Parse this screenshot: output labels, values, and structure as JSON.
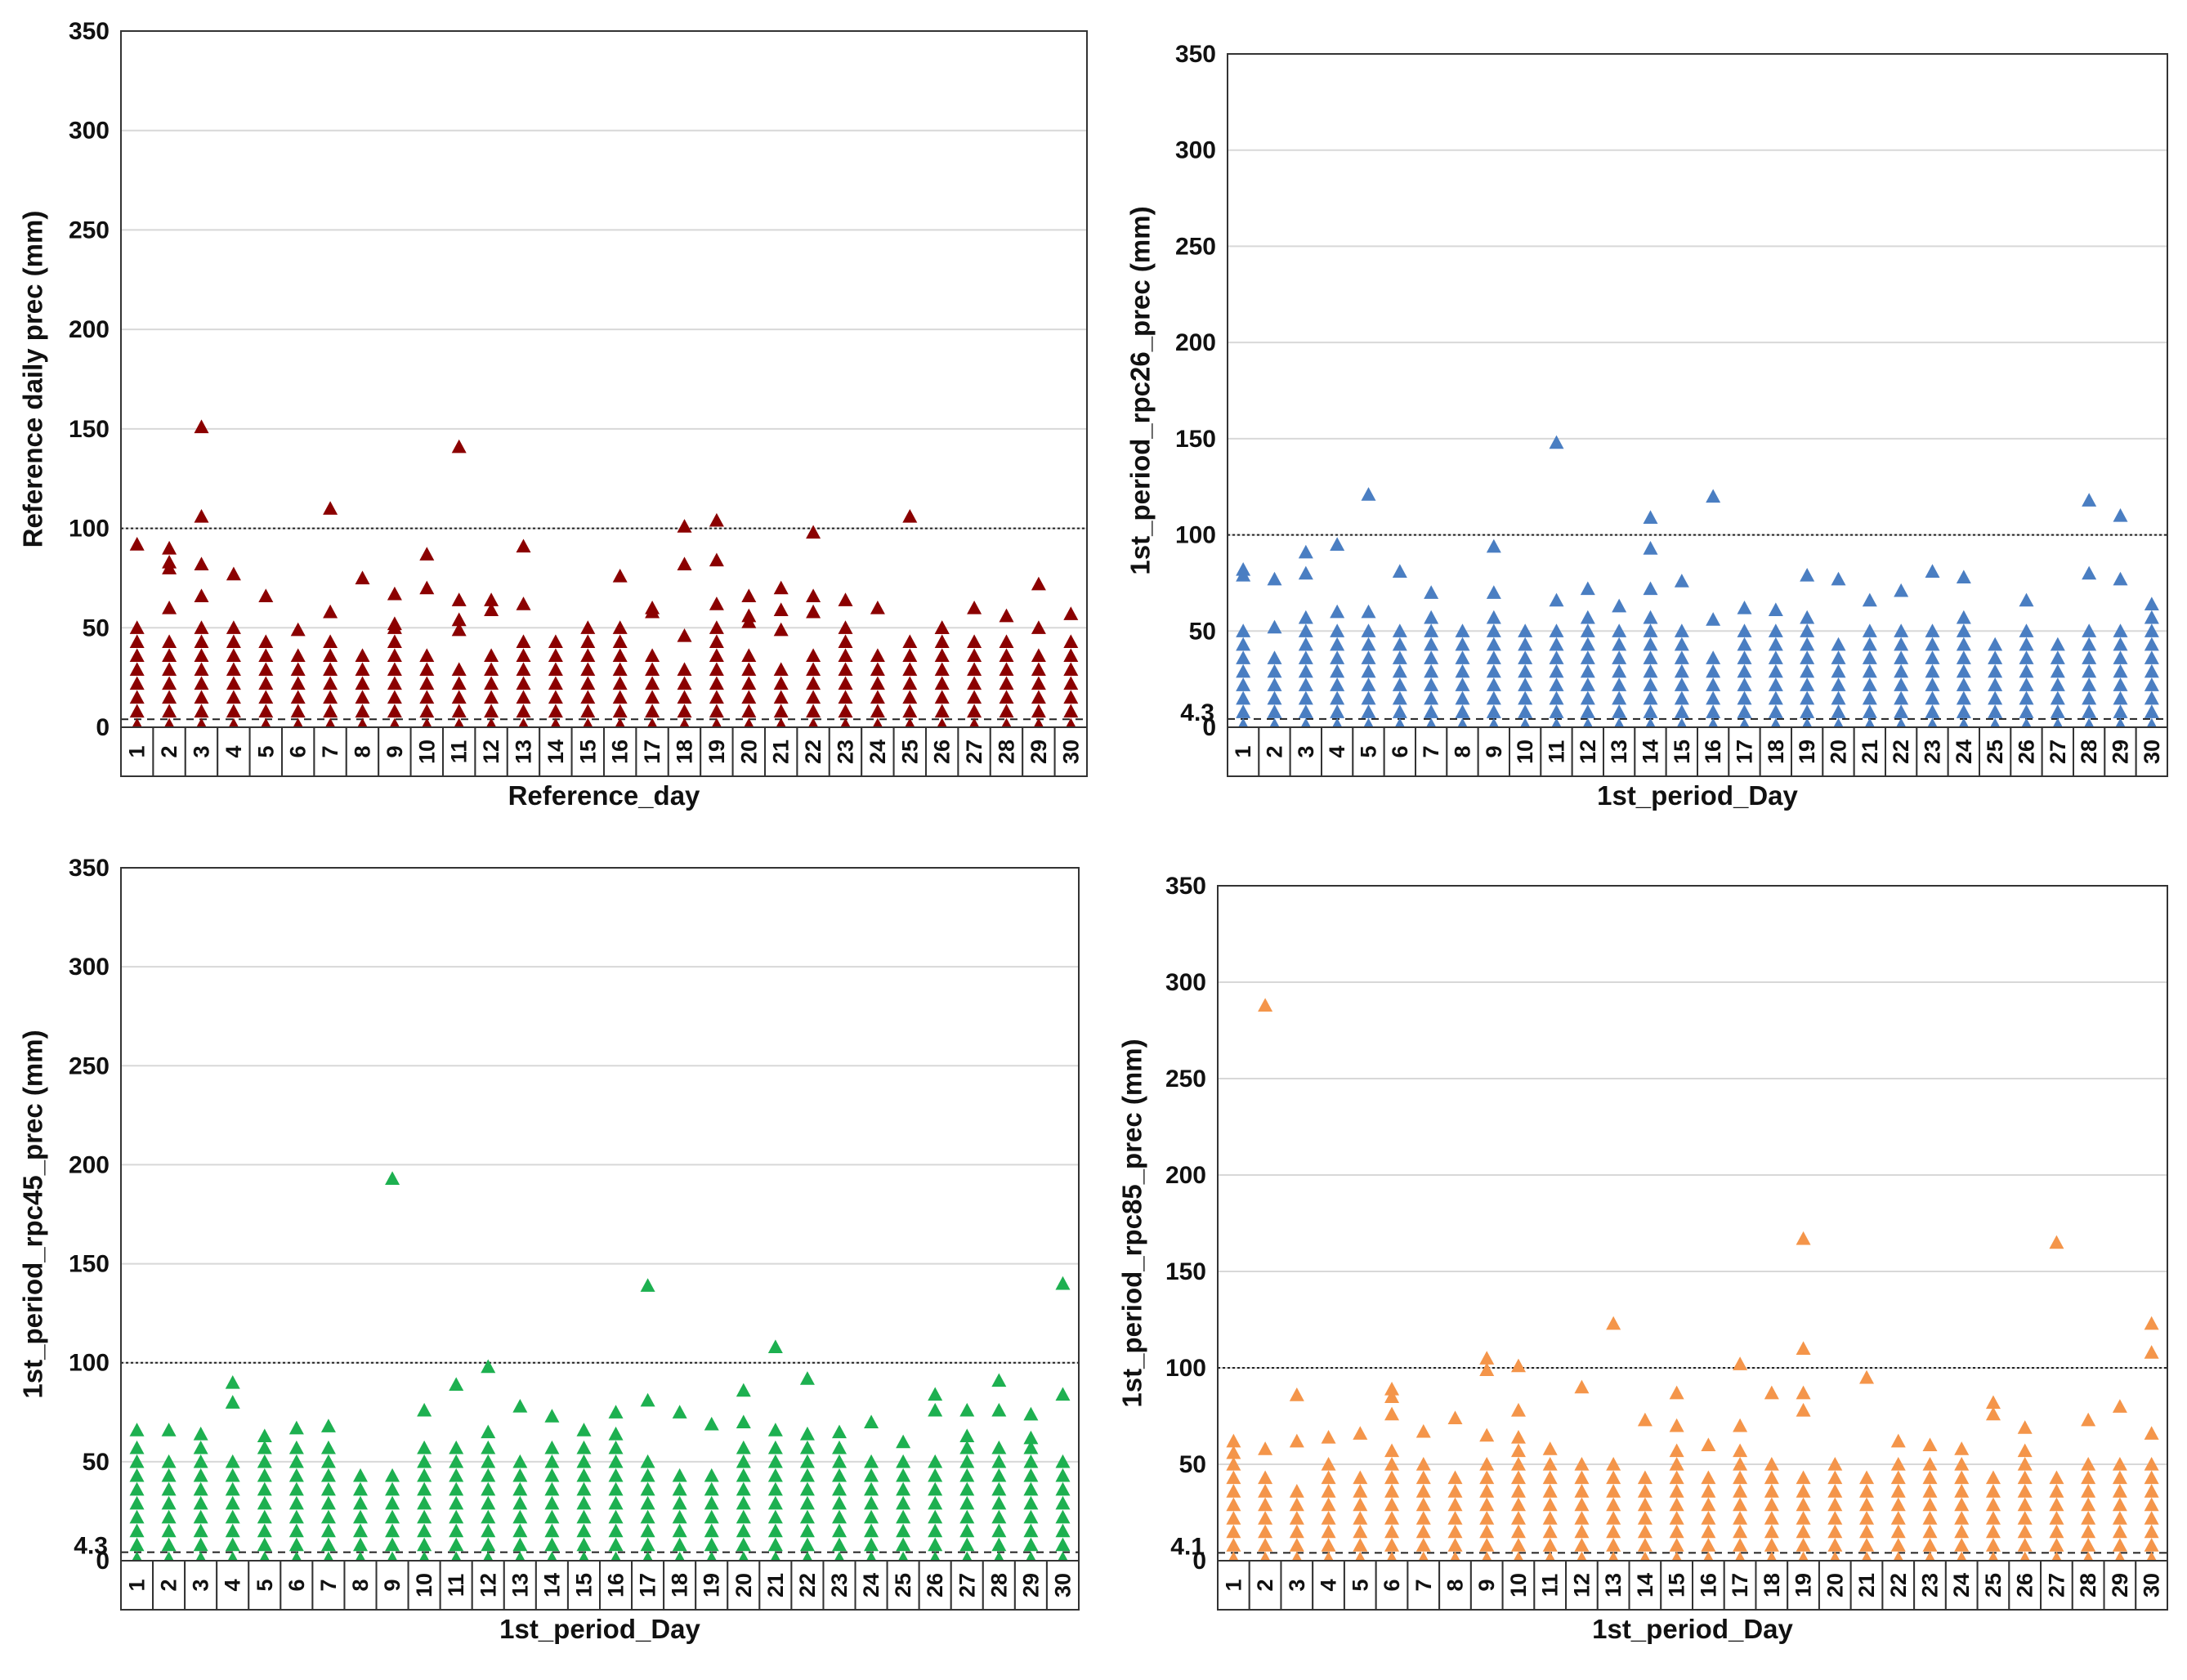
{
  "chart_data": [
    {
      "type": "scatter",
      "title": "",
      "xlabel": "Reference_day",
      "ylabel": "Reference daily prec (mm)",
      "categories": [
        "1",
        "2",
        "3",
        "4",
        "5",
        "6",
        "7",
        "8",
        "9",
        "10",
        "11",
        "12",
        "13",
        "14",
        "15",
        "16",
        "17",
        "18",
        "19",
        "20",
        "21",
        "22",
        "23",
        "24",
        "25",
        "26",
        "27",
        "28",
        "29",
        "30"
      ],
      "ylim": [
        0,
        350
      ],
      "yticks": [
        "0",
        "50",
        "100",
        "150",
        "200",
        "250",
        "300",
        "350"
      ],
      "ref_lines": [
        {
          "y": 100,
          "style": "dotted"
        },
        {
          "y": 4,
          "style": "dashed"
        }
      ],
      "marker_color": "#8B0000",
      "dense_top": [
        52,
        46,
        55,
        54,
        47,
        40,
        47,
        42,
        53,
        40,
        33,
        42,
        43,
        48,
        52,
        56,
        42,
        34,
        50,
        41,
        34,
        38,
        55,
        41,
        49,
        52,
        48,
        45,
        41,
        44
      ],
      "outliers": [
        [
          92
        ],
        [
          90,
          83,
          80,
          60
        ],
        [
          151,
          106,
          82,
          66
        ],
        [
          77
        ],
        [
          66
        ],
        [
          49
        ],
        [
          110,
          58
        ],
        [
          75
        ],
        [
          67,
          52
        ],
        [
          87,
          70
        ],
        [
          141,
          64,
          54,
          49
        ],
        [
          64,
          59
        ],
        [
          91,
          62
        ],
        [],
        [],
        [
          76
        ],
        [
          60,
          58
        ],
        [
          101,
          82,
          46
        ],
        [
          104,
          84,
          62
        ],
        [
          66,
          56,
          53
        ],
        [
          70,
          59,
          49
        ],
        [
          98,
          66,
          58
        ],
        [
          64
        ],
        [
          60
        ],
        [
          106
        ],
        [
          50
        ],
        [
          60
        ],
        [
          56
        ],
        [
          72,
          50
        ],
        [
          57
        ]
      ]
    },
    {
      "type": "scatter",
      "title": "",
      "xlabel": "1st_period_Day",
      "ylabel": "1st_period_rpc26_prec (mm)",
      "categories": [
        "1",
        "2",
        "3",
        "4",
        "5",
        "6",
        "7",
        "8",
        "9",
        "10",
        "11",
        "12",
        "13",
        "14",
        "15",
        "16",
        "17",
        "18",
        "19",
        "20",
        "21",
        "22",
        "23",
        "24",
        "25",
        "26",
        "27",
        "28",
        "29",
        "30"
      ],
      "ylim": [
        0,
        350
      ],
      "yticks": [
        "0",
        "50",
        "100",
        "150",
        "200",
        "250",
        "300",
        "350"
      ],
      "extra_ytick": "4.3",
      "ref_lines": [
        {
          "y": 100,
          "style": "dotted"
        },
        {
          "y": 4.3,
          "style": "dashed"
        }
      ],
      "marker_color": "#4A7EC2",
      "dense_top": [
        55,
        42,
        58,
        55,
        50,
        52,
        60,
        50,
        60,
        55,
        52,
        58,
        52,
        58,
        55,
        42,
        56,
        52,
        52,
        48,
        55,
        55,
        55,
        58,
        45,
        52,
        48,
        52,
        50,
        58
      ],
      "outliers": [
        [
          82,
          79
        ],
        [
          77,
          52
        ],
        [
          91,
          80
        ],
        [
          95,
          60
        ],
        [
          121,
          60
        ],
        [
          81
        ],
        [
          70
        ],
        [],
        [
          94,
          70
        ],
        [],
        [
          148,
          66
        ],
        [
          72
        ],
        [
          63
        ],
        [
          109,
          93,
          72
        ],
        [
          76
        ],
        [
          120,
          56
        ],
        [
          62
        ],
        [
          61
        ],
        [
          79,
          57
        ],
        [
          77
        ],
        [
          66
        ],
        [
          71
        ],
        [
          81
        ],
        [
          78
        ],
        [],
        [
          66
        ],
        [],
        [
          118,
          80
        ],
        [
          110,
          77
        ],
        [
          64
        ]
      ]
    },
    {
      "type": "scatter",
      "title": "",
      "xlabel": "1st_period_Day",
      "ylabel": "1st_period_rpc45_prec (mm)",
      "categories": [
        "1",
        "2",
        "3",
        "4",
        "5",
        "6",
        "7",
        "8",
        "9",
        "10",
        "11",
        "12",
        "13",
        "14",
        "15",
        "16",
        "17",
        "18",
        "19",
        "20",
        "21",
        "22",
        "23",
        "24",
        "25",
        "26",
        "27",
        "28",
        "29",
        "30"
      ],
      "ylim": [
        0,
        350
      ],
      "yticks": [
        "0",
        "50",
        "100",
        "150",
        "200",
        "250",
        "300",
        "350"
      ],
      "extra_ytick": "4.3",
      "ref_lines": [
        {
          "y": 100,
          "style": "dotted"
        },
        {
          "y": 4.3,
          "style": "dashed"
        }
      ],
      "marker_color": "#1DB050",
      "dense_top": [
        62,
        50,
        60,
        55,
        60,
        60,
        60,
        48,
        48,
        58,
        58,
        58,
        55,
        58,
        62,
        70,
        55,
        48,
        48,
        60,
        58,
        58,
        58,
        55,
        50,
        52,
        58,
        58,
        58,
        55
      ],
      "outliers": [
        [
          66
        ],
        [
          66
        ],
        [
          64
        ],
        [
          90,
          80
        ],
        [
          63
        ],
        [
          67
        ],
        [
          68
        ],
        [],
        [
          193
        ],
        [
          76
        ],
        [
          89
        ],
        [
          98,
          65
        ],
        [
          78
        ],
        [
          73
        ],
        [
          66
        ],
        [
          75
        ],
        [
          139,
          81
        ],
        [
          75
        ],
        [
          69
        ],
        [
          86,
          70
        ],
        [
          108,
          66
        ],
        [
          92,
          64
        ],
        [
          65
        ],
        [
          70
        ],
        [
          60
        ],
        [
          84,
          76
        ],
        [
          76,
          63
        ],
        [
          91,
          76
        ],
        [
          74,
          62
        ],
        [
          140,
          84
        ]
      ]
    },
    {
      "type": "scatter",
      "title": "",
      "xlabel": "1st_period_Day",
      "ylabel": "1st_period_rpc85_prec (mm)",
      "categories": [
        "1",
        "2",
        "3",
        "4",
        "5",
        "6",
        "7",
        "8",
        "9",
        "10",
        "11",
        "12",
        "13",
        "14",
        "15",
        "16",
        "17",
        "18",
        "19",
        "20",
        "21",
        "22",
        "23",
        "24",
        "25",
        "26",
        "27",
        "28",
        "29",
        "30"
      ],
      "ylim": [
        0,
        350
      ],
      "yticks": [
        "0",
        "50",
        "100",
        "150",
        "200",
        "250",
        "300",
        "350"
      ],
      "extra_ytick": "4.1",
      "ref_lines": [
        {
          "y": 100,
          "style": "dotted"
        },
        {
          "y": 4.1,
          "style": "dashed"
        }
      ],
      "marker_color": "#F4954A",
      "dense_top": [
        50,
        48,
        40,
        55,
        45,
        60,
        50,
        45,
        55,
        70,
        55,
        50,
        52,
        45,
        58,
        45,
        58,
        55,
        45,
        48,
        45,
        52,
        52,
        55,
        45,
        60,
        48,
        50,
        50,
        55
      ],
      "outliers": [
        [
          62,
          56
        ],
        [
          288,
          58
        ],
        [
          86,
          62
        ],
        [
          64
        ],
        [
          66
        ],
        [
          89,
          85,
          76
        ],
        [
          67
        ],
        [
          74
        ],
        [
          105,
          99,
          65
        ],
        [
          101,
          78
        ],
        [
          58
        ],
        [
          90
        ],
        [
          123
        ],
        [
          73
        ],
        [
          87,
          70
        ],
        [
          60
        ],
        [
          102,
          70
        ],
        [
          87
        ],
        [
          167,
          110,
          87,
          78
        ],
        [
          50
        ],
        [
          95
        ],
        [
          62
        ],
        [
          60
        ],
        [
          58
        ],
        [
          82,
          76
        ],
        [
          69
        ],
        [
          165
        ],
        [
          73
        ],
        [
          80
        ],
        [
          123,
          108,
          66
        ]
      ]
    }
  ]
}
